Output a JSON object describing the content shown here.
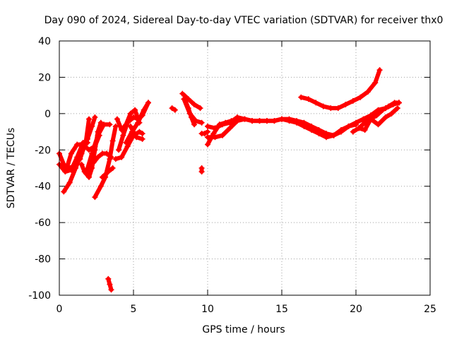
{
  "chart_data": {
    "type": "scatter",
    "title": "Day 090 of 2024, Sidereal Day-to-day VTEC variation (SDTVAR) for receiver thx0",
    "xlabel": "GPS time / hours",
    "ylabel": "SDTVAR / TECUs",
    "xlim": [
      0,
      25
    ],
    "ylim": [
      -100,
      40
    ],
    "xticks": [
      0,
      5,
      10,
      15,
      20,
      25
    ],
    "yticks": [
      -100,
      -80,
      -60,
      -40,
      -20,
      0,
      20,
      40
    ],
    "xtick_labels": [
      "0",
      "5",
      "10",
      "15",
      "20",
      "25"
    ],
    "ytick_labels": [
      "-100",
      "-80",
      "-60",
      "-40",
      "-20",
      "0",
      "20",
      "40"
    ],
    "grid": true,
    "marker": "+",
    "color": "#ff0000",
    "series": [
      {
        "name": "s1",
        "x": [
          0.0,
          0.3,
          0.6,
          1.0,
          1.4,
          1.8,
          2.0
        ],
        "y": [
          -22,
          -28,
          -30,
          -29,
          -25,
          -15,
          -3
        ]
      },
      {
        "name": "s2",
        "x": [
          0.0,
          0.4,
          0.8,
          1.2,
          1.6,
          1.9
        ],
        "y": [
          -28,
          -32,
          -31,
          -24,
          -16,
          -16
        ]
      },
      {
        "name": "s3",
        "x": [
          0.3,
          0.7,
          1.1,
          1.5,
          1.9,
          2.2,
          2.4
        ],
        "y": [
          -43,
          -38,
          -30,
          -22,
          -14,
          -7,
          -2
        ]
      },
      {
        "name": "s4",
        "x": [
          0.5,
          0.8,
          1.2,
          1.6,
          2.0,
          2.4,
          2.7
        ],
        "y": [
          -30,
          -22,
          -17,
          -17,
          -20,
          -18,
          -12
        ]
      },
      {
        "name": "s5",
        "x": [
          1.5,
          1.7,
          2.0,
          2.2,
          2.4,
          2.6,
          2.8
        ],
        "y": [
          -28,
          -32,
          -35,
          -30,
          -20,
          -10,
          -5
        ]
      },
      {
        "name": "s6",
        "x": [
          2.3,
          2.6,
          2.9,
          3.2,
          3.5
        ],
        "y": [
          -27,
          -24,
          -22,
          -22,
          -24
        ]
      },
      {
        "name": "s7",
        "x": [
          2.4,
          2.8,
          3.1,
          3.4,
          3.6,
          3.8
        ],
        "y": [
          -46,
          -40,
          -35,
          -25,
          -15,
          -7
        ]
      },
      {
        "name": "s8",
        "x": [
          1.8,
          2.2,
          2.6,
          3.0,
          3.4
        ],
        "y": [
          -33,
          -22,
          -12,
          -6,
          -6
        ]
      },
      {
        "name": "s9",
        "x": [
          2.9,
          3.3,
          3.6
        ],
        "y": [
          -35,
          -32,
          -30
        ]
      },
      {
        "name": "s10",
        "x": [
          3.3,
          3.4,
          3.5
        ],
        "y": [
          -91,
          -94,
          -97
        ]
      },
      {
        "name": "s11",
        "x": [
          3.8,
          4.2,
          4.6,
          5.0,
          5.4,
          5.6
        ],
        "y": [
          -25,
          -24,
          -18,
          -12,
          -10,
          -11
        ]
      },
      {
        "name": "s12",
        "x": [
          4.0,
          4.3,
          4.6,
          5.0,
          5.3,
          5.6,
          6.0
        ],
        "y": [
          -20,
          -12,
          -5,
          -2,
          -3,
          -1,
          6
        ]
      },
      {
        "name": "s13",
        "x": [
          3.9,
          4.2,
          4.5,
          4.8,
          5.1,
          5.4
        ],
        "y": [
          -3,
          -9,
          -6,
          0,
          2,
          -5
        ]
      },
      {
        "name": "s14",
        "x": [
          4.5,
          4.9,
          5.3,
          5.7,
          6.0
        ],
        "y": [
          -16,
          -10,
          -5,
          2,
          6
        ]
      },
      {
        "name": "s15",
        "x": [
          4.8,
          5.2,
          5.6
        ],
        "y": [
          -7,
          -13,
          -14
        ]
      },
      {
        "name": "s16",
        "x": [
          7.6,
          7.8
        ],
        "y": [
          3,
          2
        ]
      },
      {
        "name": "s17",
        "x": [
          8.3,
          8.7,
          9.1,
          9.5
        ],
        "y": [
          11,
          8,
          5,
          3
        ]
      },
      {
        "name": "s18",
        "x": [
          8.4,
          8.8,
          9.2,
          9.6
        ],
        "y": [
          8,
          0,
          -4,
          -5
        ]
      },
      {
        "name": "s19",
        "x": [
          8.5,
          8.7,
          8.9,
          9.1
        ],
        "y": [
          7,
          3,
          -2,
          -6
        ]
      },
      {
        "name": "s20",
        "x": [
          9.6,
          9.6
        ],
        "y": [
          -30,
          -32
        ]
      },
      {
        "name": "s21",
        "x": [
          9.6,
          9.8,
          10.0
        ],
        "y": [
          -11,
          -11,
          -10
        ]
      },
      {
        "name": "s22",
        "x": [
          10.0,
          10.5,
          11.0,
          11.5,
          12.0,
          12.5,
          13.0,
          13.5,
          14.0,
          14.5,
          15.0,
          15.5,
          16.0,
          16.5,
          17.0,
          17.5,
          18.0,
          18.5,
          19.0,
          19.5,
          20.0,
          20.5,
          21.0,
          21.5,
          22.0,
          22.5,
          22.9
        ],
        "y": [
          -7,
          -8,
          -6,
          -5,
          -2,
          -3,
          -4,
          -4,
          -4,
          -4,
          -3,
          -3,
          -4,
          -5,
          -7,
          -9,
          -11,
          -12,
          -10,
          -7,
          -5,
          -3,
          -1,
          2,
          3,
          5,
          6
        ]
      },
      {
        "name": "s23",
        "x": [
          10.0,
          10.5,
          11.0,
          11.5,
          12.0,
          12.5,
          13.0,
          13.5,
          14.0,
          14.5,
          15.0,
          15.5,
          16.0,
          16.5,
          17.0,
          17.5,
          18.0,
          18.5,
          19.0,
          19.5,
          20.0
        ],
        "y": [
          -13,
          -13,
          -12,
          -8,
          -4,
          -3,
          -4,
          -4,
          -4,
          -4,
          -3,
          -4,
          -5,
          -7,
          -9,
          -11,
          -13,
          -12,
          -9,
          -7,
          -6
        ]
      },
      {
        "name": "s24",
        "x": [
          10.0,
          10.4,
          10.8,
          11.2,
          11.6
        ],
        "y": [
          -17,
          -11,
          -6,
          -5,
          -4
        ]
      },
      {
        "name": "s25",
        "x": [
          16.3,
          16.8,
          17.3,
          17.8,
          18.3,
          18.8,
          19.3,
          19.8,
          20.3,
          20.8,
          21.3,
          21.6
        ],
        "y": [
          9,
          8,
          6,
          4,
          3,
          3,
          5,
          7,
          9,
          12,
          17,
          24
        ]
      },
      {
        "name": "s26",
        "x": [
          19.8,
          20.2,
          20.6,
          21.0,
          21.4,
          21.8,
          22.2,
          22.6,
          22.9
        ],
        "y": [
          -10,
          -8,
          -5,
          -3,
          -1,
          2,
          4,
          6,
          6
        ]
      },
      {
        "name": "s27",
        "x": [
          20.2,
          20.6,
          21.0,
          21.5,
          22.0,
          22.4,
          22.8
        ],
        "y": [
          -8,
          -9,
          -3,
          -6,
          -2,
          0,
          3
        ]
      },
      {
        "name": "s28",
        "x": [
          20.5,
          21.0,
          21.5,
          22.0,
          22.5,
          22.9
        ],
        "y": [
          -4,
          -1,
          1,
          3,
          5,
          6
        ]
      }
    ]
  }
}
